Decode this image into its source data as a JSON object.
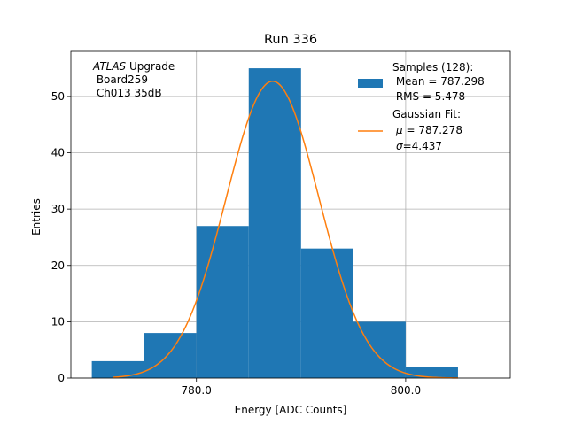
{
  "chart_data": {
    "type": "bar",
    "title": "Run 336",
    "xlabel": "Energy [ADC Counts]",
    "ylabel": "Entries",
    "xlim": [
      768,
      810
    ],
    "ylim": [
      0,
      58
    ],
    "xticks": [
      780.0,
      800.0
    ],
    "xtick_labels": [
      "780.0",
      "800.0"
    ],
    "yticks": [
      0,
      10,
      20,
      30,
      40,
      50
    ],
    "ytick_labels": [
      "0",
      "10",
      "20",
      "30",
      "40",
      "50"
    ],
    "grid": true,
    "histogram": {
      "bin_edges": [
        770,
        775,
        780,
        785,
        790,
        795,
        800,
        805
      ],
      "counts": [
        3,
        8,
        27,
        55,
        23,
        10,
        2
      ],
      "color": "#1f77b4"
    },
    "fit": {
      "mu": 787.278,
      "sigma": 4.437,
      "amplitude": 52.7,
      "range": [
        772,
        805
      ],
      "color": "#ff7f0e"
    },
    "annotation": {
      "line1_italic": "ATLAS",
      "line1_rest": " Upgrade",
      "line2": " Board259",
      "line3": " Ch013 35dB"
    },
    "legend": {
      "position": "top-right",
      "samples": [
        "Samples (128):",
        " Mean = 787.298",
        " RMS = 5.478"
      ],
      "fit_title": "Gaussian Fit:",
      "fit_mu_symbol": "μ",
      "fit_mu_value": " = 787.278",
      "fit_sigma_symbol": "σ",
      "fit_sigma_value": "=4.437"
    }
  }
}
